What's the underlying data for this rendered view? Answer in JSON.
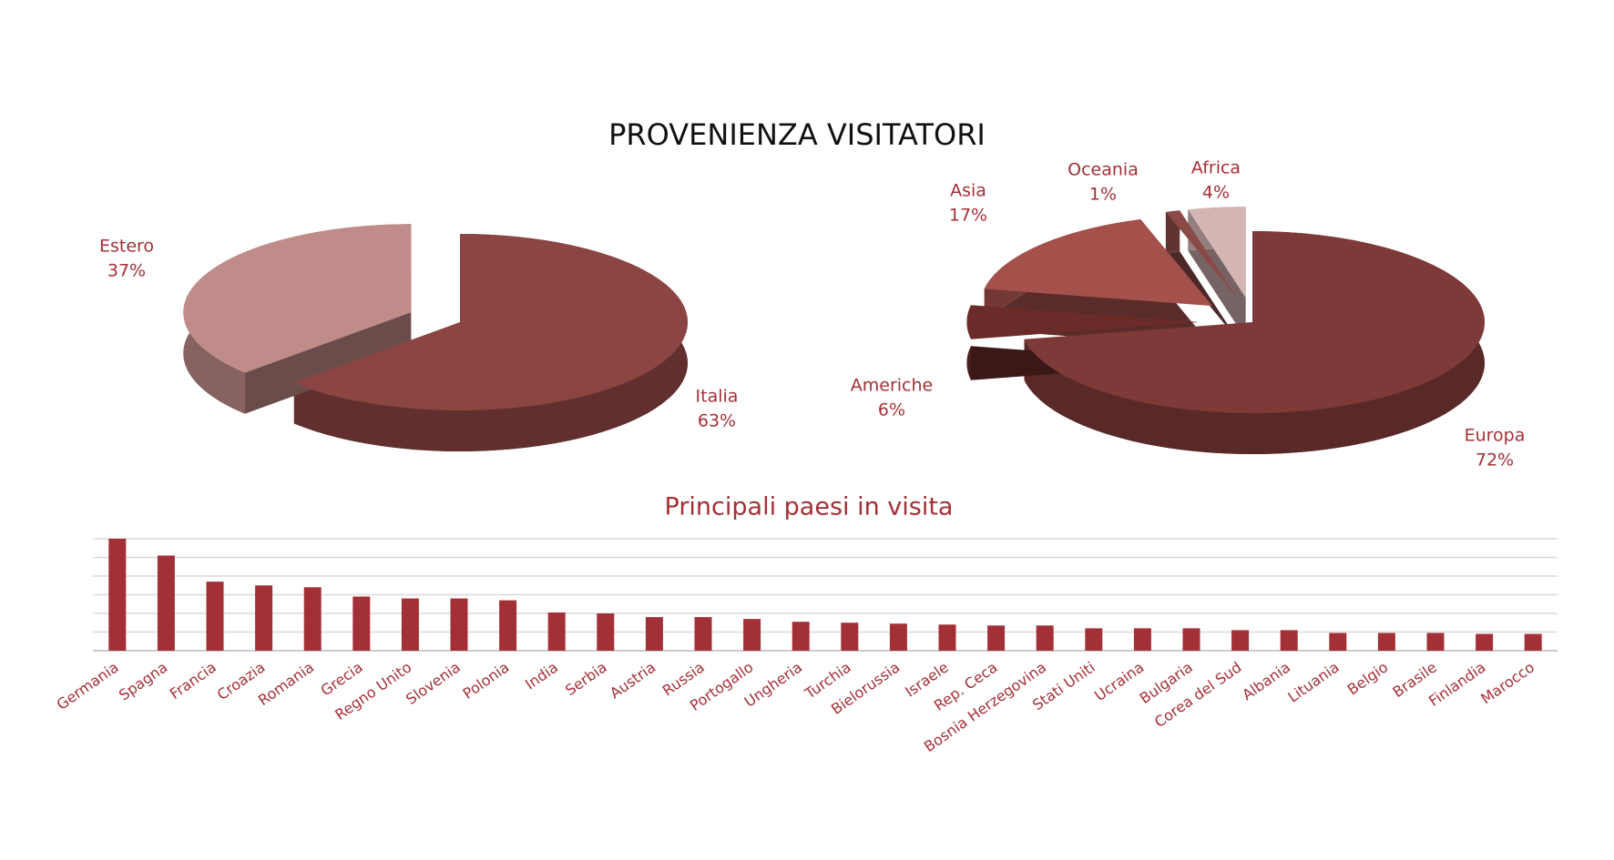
{
  "title": "PROVENIENZA VISITATORI",
  "chart_data": [
    {
      "type": "pie3d",
      "categories": [
        "Italia",
        "Estero"
      ],
      "values": [
        63,
        37
      ],
      "value_labels": [
        "63%",
        "37%"
      ],
      "colors": [
        "#8b4542",
        "#c08c89"
      ],
      "exploded": [
        false,
        true
      ]
    },
    {
      "type": "pie3d",
      "categories": [
        "Europa",
        "Americhe",
        "Asia",
        "Oceania",
        "Africa"
      ],
      "values": [
        72,
        6,
        17,
        1,
        4
      ],
      "value_labels": [
        "72%",
        "6%",
        "17%",
        "1%",
        "4%"
      ],
      "colors": [
        "#7d3a38",
        "#6a2b29",
        "#a4504b",
        "#8b4a48",
        "#d4b5b4"
      ],
      "exploded": [
        false,
        true,
        true,
        true,
        true
      ]
    },
    {
      "type": "bar",
      "title": "Principali paesi in visita",
      "categories": [
        "Germania",
        "Spagna",
        "Francia",
        "Croazia",
        "Romania",
        "Grecia",
        "Regno Unito",
        "Slovenia",
        "Polonia",
        "India",
        "Serbia",
        "Austria",
        "Russia",
        "Portogallo",
        "Ungheria",
        "Turchia",
        "Bielorussia",
        "Israele",
        "Rep. Ceca",
        "Bosnia Herzegovina",
        "Stati Uniti",
        "Ucraina",
        "Bulgaria",
        "Corea del Sud",
        "Albania",
        "Lituania",
        "Belgio",
        "Brasile",
        "Finlandia",
        "Marocco"
      ],
      "values": [
        6,
        5.1,
        3.7,
        3.5,
        3.4,
        2.9,
        2.8,
        2.8,
        2.7,
        2.05,
        2,
        1.8,
        1.8,
        1.7,
        1.55,
        1.5,
        1.45,
        1.4,
        1.35,
        1.35,
        1.2,
        1.2,
        1.2,
        1.1,
        1.1,
        0.95,
        0.95,
        0.95,
        0.9,
        0.9
      ],
      "color": "#a33036",
      "ylim": [
        0,
        6
      ],
      "yticks": [
        0,
        1,
        2,
        3,
        4,
        5,
        6
      ],
      "grid": true
    }
  ]
}
